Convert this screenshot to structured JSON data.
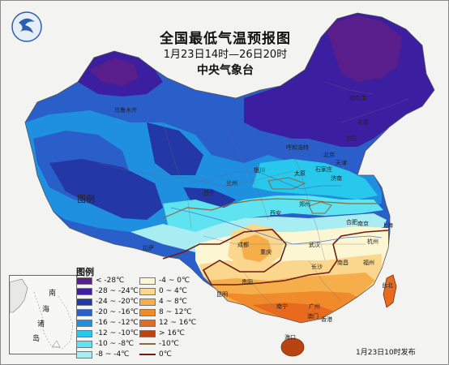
{
  "title": "全国最低气温预报图",
  "period": "1月23日14时—26日20时",
  "issuer": "中央气象台",
  "issue_time": "1月23日10时发布",
  "legend": {
    "title": "图例",
    "left_items": [
      {
        "label": "< -28℃",
        "color": "#5a1d8c"
      },
      {
        "label": "-28 ~ -24℃",
        "color": "#3b1fa0"
      },
      {
        "label": "-24 ~ -20℃",
        "color": "#2437a6"
      },
      {
        "label": "-20 ~ -16℃",
        "color": "#2a5ec8"
      },
      {
        "label": "-16 ~ -12℃",
        "color": "#1f8fe0"
      },
      {
        "label": "-12 ~ -10℃",
        "color": "#28c8ec"
      },
      {
        "label": "-10 ~ -8℃",
        "color": "#5fe3f0"
      },
      {
        "label": "-8 ~ -4℃",
        "color": "#a8edf2"
      }
    ],
    "right_items": [
      {
        "label": "-4 ~ 0℃",
        "color": "#fdf6d2"
      },
      {
        "label": "0 ~ 4℃",
        "color": "#fbd78e"
      },
      {
        "label": "4 ~ 8℃",
        "color": "#f5ae4a"
      },
      {
        "label": "8 ~ 12℃",
        "color": "#f08a2a"
      },
      {
        "label": "12 ~ 16℃",
        "color": "#e86a1f"
      },
      {
        "label": "> 16℃",
        "color": "#b84412"
      },
      {
        "label": "-10℃",
        "color": "#8a6a3c",
        "line": true
      },
      {
        "label": "0℃",
        "color": "#6e1e10",
        "line": true
      }
    ]
  },
  "inset_labels": [
    "南",
    "海",
    "诸",
    "岛"
  ],
  "province_label": "图例",
  "cities": [
    "乌鲁木齐",
    "哈尔滨",
    "长春",
    "沈阳",
    "北京",
    "天津",
    "石家庄",
    "太原",
    "呼和浩特",
    "银川",
    "兰州",
    "西宁",
    "西安",
    "郑州",
    "济南",
    "合肥",
    "南京",
    "上海",
    "杭州",
    "武汉",
    "长沙",
    "南昌",
    "福州",
    "台北",
    "成都",
    "重庆",
    "贵阳",
    "昆明",
    "南宁",
    "广州",
    "香港",
    "澳门",
    "海口",
    "拉萨"
  ],
  "colors": {
    "land_outside": "#f3f3f1",
    "sea": "#f7f8f6"
  }
}
